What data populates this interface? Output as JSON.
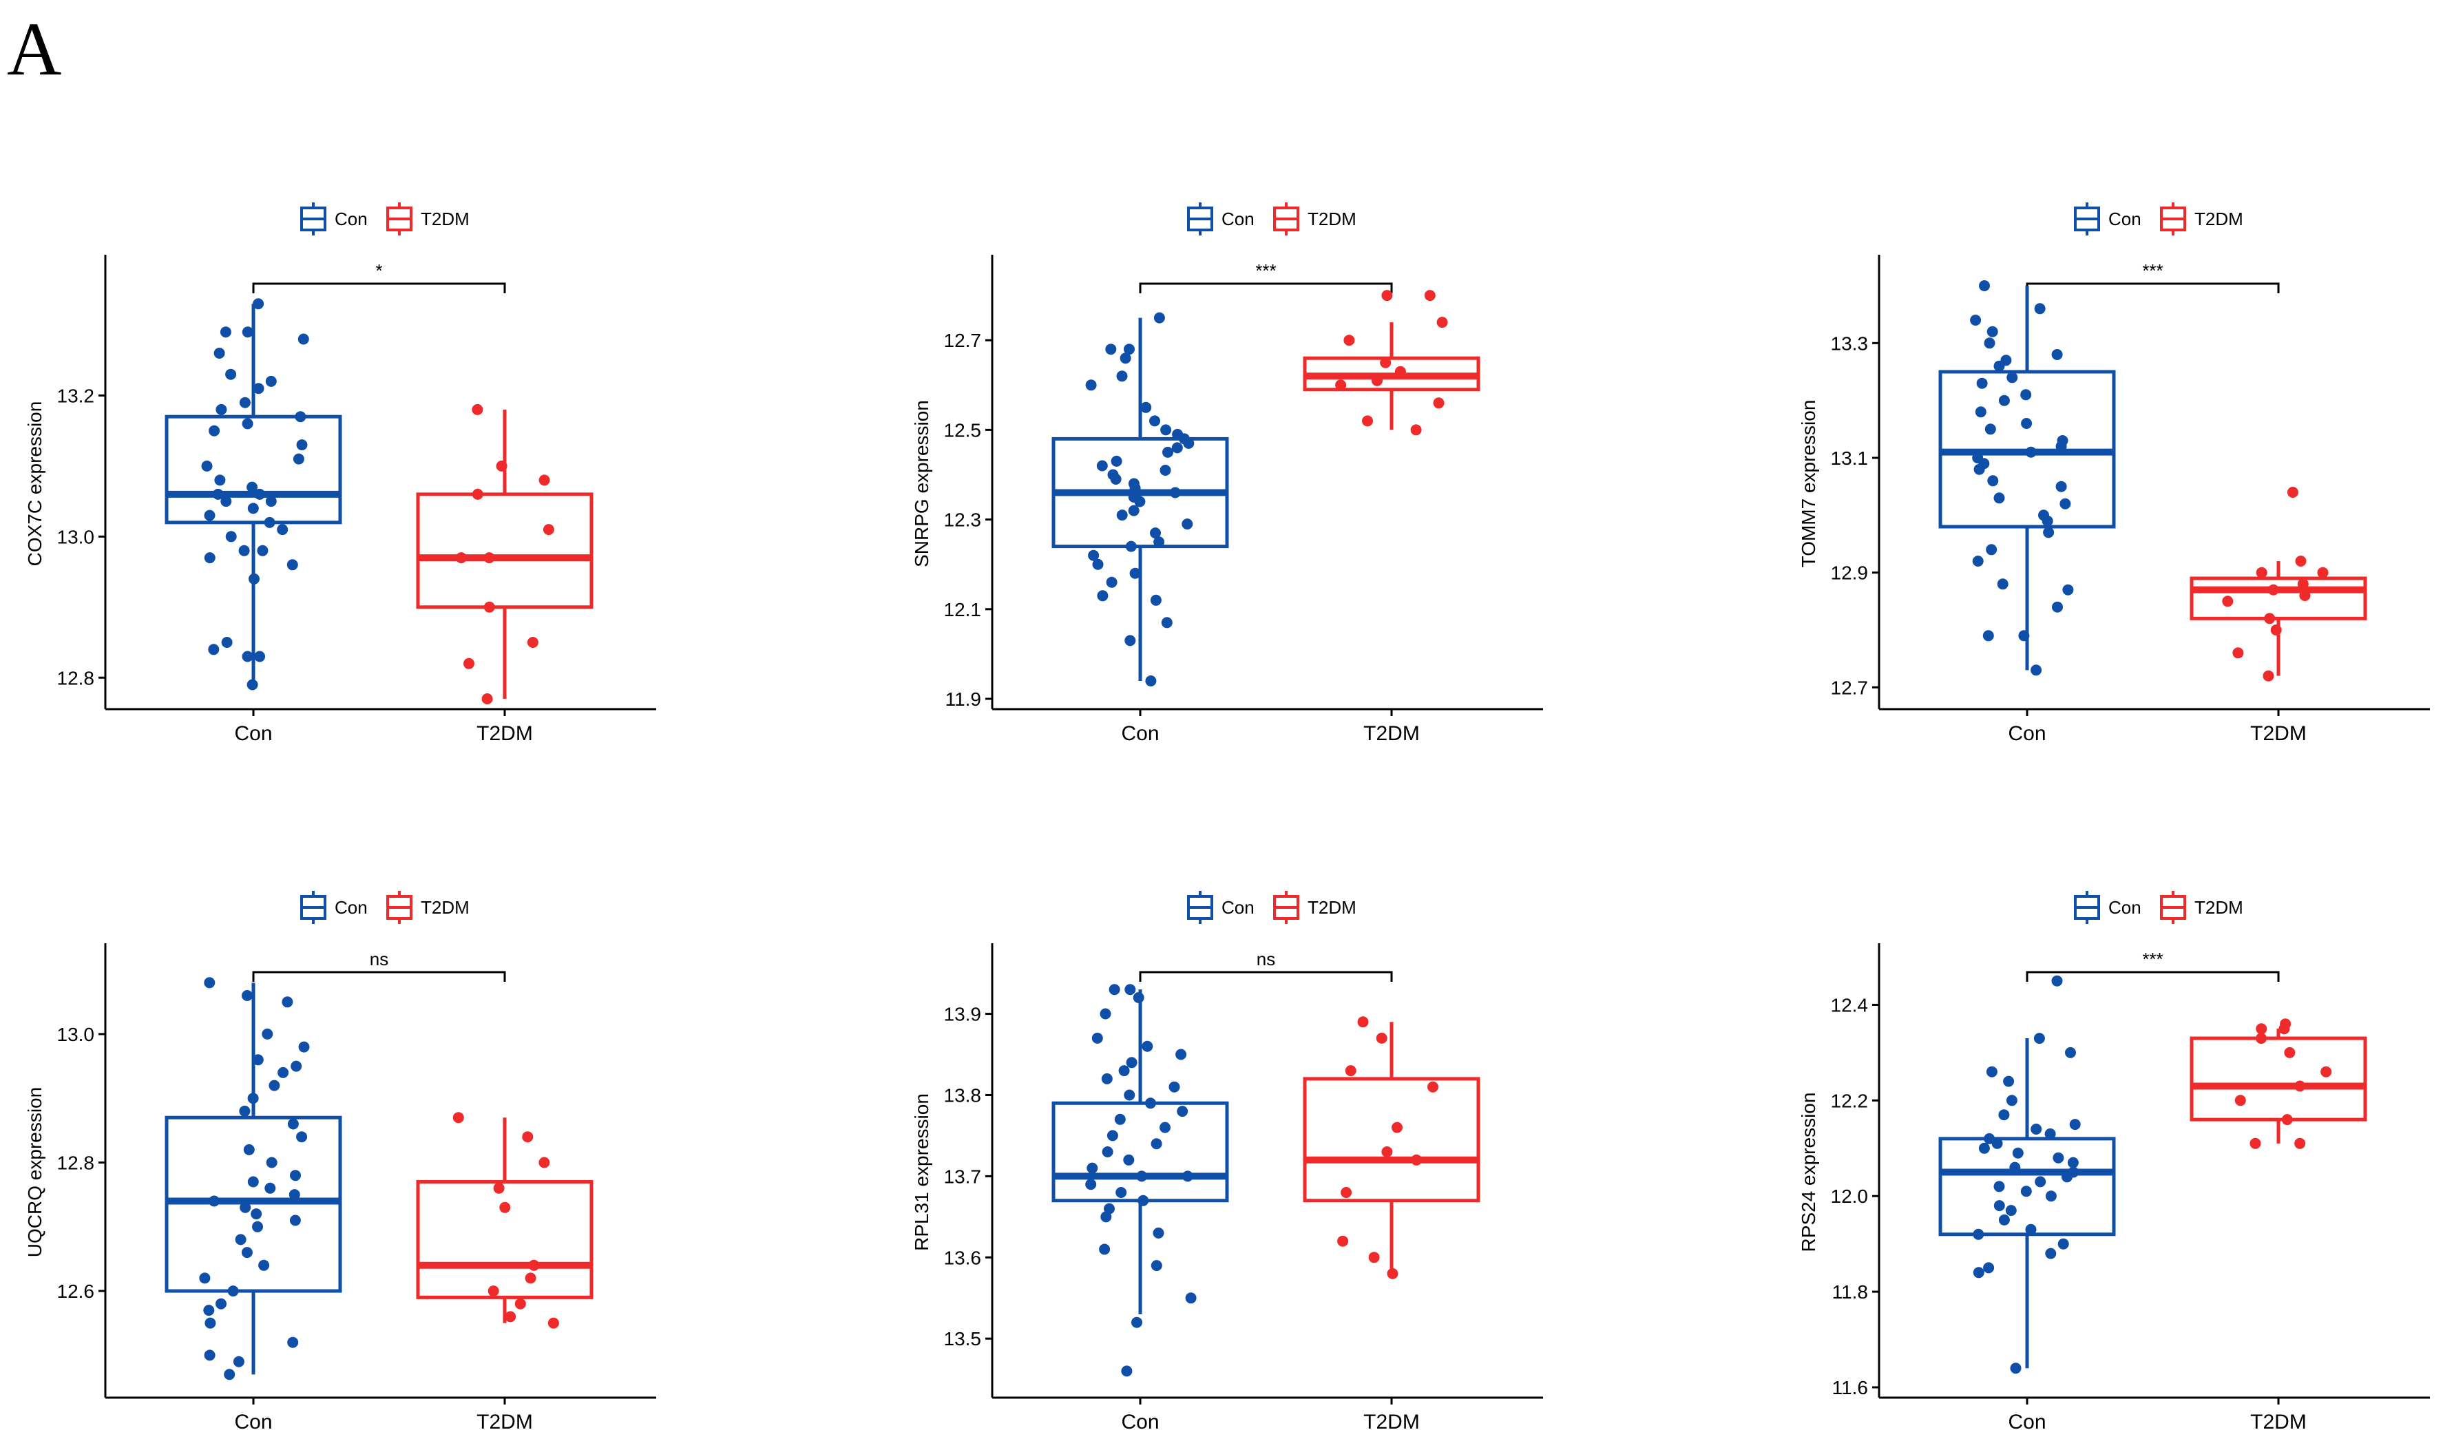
{
  "figure": {
    "panel_label": "A"
  },
  "colors": {
    "con": "#0F4FA8",
    "t2dm": "#EE2A2A",
    "axis": "#000000"
  },
  "chart_data": [
    {
      "type": "boxplot",
      "ylabel": "COX7C expression",
      "categories": [
        "Con",
        "T2DM"
      ],
      "legend": [
        "Con",
        "T2DM"
      ],
      "legend_position": "top",
      "ylim": [
        12.77,
        13.38
      ],
      "yticks": [
        12.8,
        13.0,
        13.2
      ],
      "ytick_labels": [
        "12.8",
        "13.0",
        "13.2"
      ],
      "significance": "*",
      "groups": [
        {
          "name": "Con",
          "whisker_low": 12.79,
          "q1": 13.02,
          "median": 13.06,
          "q3": 13.17,
          "whisker_high": 13.33,
          "points": [
            12.79,
            12.83,
            12.84,
            12.85,
            12.83,
            12.94,
            12.97,
            12.96,
            12.98,
            12.98,
            13.0,
            13.01,
            13.02,
            13.03,
            13.04,
            13.05,
            13.05,
            13.06,
            13.06,
            13.07,
            13.08,
            13.1,
            13.11,
            13.13,
            13.15,
            13.16,
            13.17,
            13.18,
            13.19,
            13.21,
            13.22,
            13.23,
            13.26,
            13.28,
            13.29,
            13.29,
            13.33
          ]
        },
        {
          "name": "T2DM",
          "whisker_low": 12.77,
          "q1": 12.9,
          "median": 12.97,
          "q3": 13.06,
          "whisker_high": 13.18,
          "points": [
            12.77,
            12.82,
            12.85,
            12.9,
            12.97,
            12.97,
            13.01,
            13.06,
            13.08,
            13.1,
            13.18
          ]
        }
      ]
    },
    {
      "type": "boxplot",
      "ylabel": "SNRPG expression",
      "categories": [
        "Con",
        "T2DM"
      ],
      "legend": [
        "Con",
        "T2DM"
      ],
      "legend_position": "top",
      "ylim": [
        11.9,
        12.86
      ],
      "yticks": [
        11.9,
        12.1,
        12.3,
        12.5,
        12.7
      ],
      "ytick_labels": [
        "11.9",
        "12.1",
        "12.3",
        "12.5",
        "12.7"
      ],
      "significance": "***",
      "groups": [
        {
          "name": "Con",
          "whisker_low": 11.94,
          "q1": 12.24,
          "median": 12.36,
          "q3": 12.48,
          "whisker_high": 12.75,
          "points": [
            11.94,
            12.03,
            12.07,
            12.12,
            12.13,
            12.16,
            12.18,
            12.2,
            12.22,
            12.24,
            12.25,
            12.27,
            12.29,
            12.31,
            12.32,
            12.34,
            12.35,
            12.36,
            12.37,
            12.38,
            12.39,
            12.4,
            12.41,
            12.42,
            12.43,
            12.45,
            12.46,
            12.47,
            12.48,
            12.49,
            12.5,
            12.52,
            12.55,
            12.6,
            12.62,
            12.66,
            12.68,
            12.68,
            12.75
          ]
        },
        {
          "name": "T2DM",
          "whisker_low": 12.5,
          "q1": 12.59,
          "median": 12.62,
          "q3": 12.66,
          "whisker_high": 12.74,
          "points": [
            12.5,
            12.52,
            12.56,
            12.6,
            12.61,
            12.63,
            12.65,
            12.7,
            12.74,
            12.8,
            12.8
          ]
        }
      ]
    },
    {
      "type": "boxplot",
      "ylabel": "TOMM7 expression",
      "categories": [
        "Con",
        "T2DM"
      ],
      "legend": [
        "Con",
        "T2DM"
      ],
      "legend_position": "top",
      "ylim": [
        12.68,
        13.43
      ],
      "yticks": [
        12.7,
        12.9,
        13.1,
        13.3
      ],
      "ytick_labels": [
        "12.7",
        "12.9",
        "13.1",
        "13.3"
      ],
      "significance": "***",
      "groups": [
        {
          "name": "Con",
          "whisker_low": 12.73,
          "q1": 12.98,
          "median": 13.11,
          "q3": 13.25,
          "whisker_high": 13.4,
          "points": [
            12.73,
            12.79,
            12.79,
            12.84,
            12.87,
            12.88,
            12.92,
            12.94,
            12.97,
            12.99,
            13.0,
            13.02,
            13.03,
            13.05,
            13.06,
            13.08,
            13.09,
            13.1,
            13.11,
            13.12,
            13.13,
            13.15,
            13.16,
            13.18,
            13.2,
            13.21,
            13.23,
            13.24,
            13.26,
            13.27,
            13.28,
            13.3,
            13.32,
            13.34,
            13.36,
            13.4
          ]
        },
        {
          "name": "T2DM",
          "whisker_low": 12.72,
          "q1": 12.82,
          "median": 12.87,
          "q3": 12.89,
          "whisker_high": 12.92,
          "points": [
            12.72,
            12.76,
            12.8,
            12.82,
            12.85,
            12.86,
            12.87,
            12.88,
            12.9,
            12.9,
            12.92,
            13.04
          ]
        }
      ]
    },
    {
      "type": "boxplot",
      "ylabel": "UQCRQ expression",
      "categories": [
        "Con",
        "T2DM"
      ],
      "legend": [
        "Con",
        "T2DM"
      ],
      "legend_position": "top",
      "ylim": [
        12.45,
        13.12
      ],
      "yticks": [
        12.6,
        12.8,
        13.0
      ],
      "ytick_labels": [
        "12.6",
        "12.8",
        "13.0"
      ],
      "significance": "ns",
      "groups": [
        {
          "name": "Con",
          "whisker_low": 12.47,
          "q1": 12.6,
          "median": 12.74,
          "q3": 12.87,
          "whisker_high": 13.08,
          "points": [
            12.47,
            12.49,
            12.5,
            12.52,
            12.55,
            12.57,
            12.58,
            12.6,
            12.62,
            12.64,
            12.66,
            12.68,
            12.7,
            12.71,
            12.72,
            12.73,
            12.74,
            12.75,
            12.76,
            12.77,
            12.78,
            12.8,
            12.82,
            12.84,
            12.86,
            12.88,
            12.9,
            12.92,
            12.94,
            12.95,
            12.96,
            12.98,
            13.0,
            13.05,
            13.06,
            13.08
          ]
        },
        {
          "name": "T2DM",
          "whisker_low": 12.55,
          "q1": 12.59,
          "median": 12.64,
          "q3": 12.77,
          "whisker_high": 12.87,
          "points": [
            12.55,
            12.56,
            12.58,
            12.6,
            12.62,
            12.64,
            12.73,
            12.76,
            12.8,
            12.84,
            12.87
          ]
        }
      ]
    },
    {
      "type": "boxplot",
      "ylabel": "RPL31 expression",
      "categories": [
        "Con",
        "T2DM"
      ],
      "legend": [
        "Con",
        "T2DM"
      ],
      "legend_position": "top",
      "ylim": [
        13.44,
        13.97
      ],
      "yticks": [
        13.5,
        13.6,
        13.7,
        13.8,
        13.9
      ],
      "ytick_labels": [
        "13.5",
        "13.6",
        "13.7",
        "13.8",
        "13.9"
      ],
      "significance": "ns",
      "groups": [
        {
          "name": "Con",
          "whisker_low": 13.53,
          "q1": 13.67,
          "median": 13.7,
          "q3": 13.79,
          "whisker_high": 13.93,
          "points": [
            13.46,
            13.52,
            13.55,
            13.59,
            13.61,
            13.63,
            13.65,
            13.66,
            13.67,
            13.68,
            13.69,
            13.7,
            13.7,
            13.71,
            13.72,
            13.73,
            13.74,
            13.75,
            13.76,
            13.77,
            13.78,
            13.79,
            13.8,
            13.81,
            13.82,
            13.83,
            13.84,
            13.85,
            13.86,
            13.87,
            13.9,
            13.92,
            13.93,
            13.93
          ]
        },
        {
          "name": "T2DM",
          "whisker_low": 13.58,
          "q1": 13.67,
          "median": 13.72,
          "q3": 13.82,
          "whisker_high": 13.89,
          "points": [
            13.58,
            13.6,
            13.62,
            13.68,
            13.72,
            13.73,
            13.76,
            13.81,
            13.83,
            13.87,
            13.89
          ]
        }
      ]
    },
    {
      "type": "boxplot",
      "ylabel": "RPS24 expression",
      "categories": [
        "Con",
        "T2DM"
      ],
      "legend": [
        "Con",
        "T2DM"
      ],
      "legend_position": "top",
      "ylim": [
        11.6,
        12.5
      ],
      "yticks": [
        11.6,
        11.8,
        12.0,
        12.2,
        12.4
      ],
      "ytick_labels": [
        "11.6",
        "11.8",
        "12.0",
        "12.2",
        "12.4"
      ],
      "significance": "***",
      "groups": [
        {
          "name": "Con",
          "whisker_low": 11.64,
          "q1": 11.92,
          "median": 12.05,
          "q3": 12.12,
          "whisker_high": 12.33,
          "points": [
            11.64,
            11.84,
            11.85,
            11.88,
            11.9,
            11.92,
            11.93,
            11.95,
            11.97,
            11.98,
            12.0,
            12.01,
            12.02,
            12.03,
            12.04,
            12.05,
            12.06,
            12.07,
            12.08,
            12.09,
            12.1,
            12.11,
            12.12,
            12.13,
            12.14,
            12.15,
            12.17,
            12.2,
            12.24,
            12.26,
            12.3,
            12.33,
            12.45
          ]
        },
        {
          "name": "T2DM",
          "whisker_low": 12.11,
          "q1": 12.16,
          "median": 12.23,
          "q3": 12.33,
          "whisker_high": 12.35,
          "points": [
            12.11,
            12.11,
            12.16,
            12.2,
            12.23,
            12.26,
            12.3,
            12.33,
            12.35,
            12.35,
            12.36
          ]
        }
      ]
    }
  ]
}
